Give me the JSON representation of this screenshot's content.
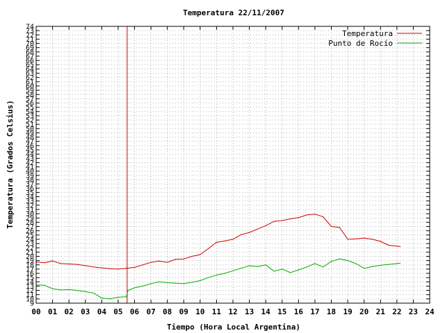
{
  "chart_data": {
    "type": "line",
    "title": "Temperatura 22/11/2007",
    "xlabel": "Tiempo (Hora Local Argentina)",
    "ylabel": "Temperatura (Grados Celsius)",
    "xlim": [
      0,
      24
    ],
    "ylim": [
      9,
      74
    ],
    "x_ticks": [
      "00",
      "01",
      "02",
      "03",
      "04",
      "05",
      "06",
      "07",
      "08",
      "09",
      "10",
      "11",
      "12",
      "13",
      "14",
      "15",
      "16",
      "17",
      "18",
      "19",
      "20",
      "21",
      "22",
      "23",
      "24"
    ],
    "y_ticks": [
      9,
      10,
      11,
      12,
      13,
      14,
      15,
      16,
      17,
      18,
      19,
      20,
      21,
      22,
      23,
      24,
      25,
      26,
      27,
      28,
      29,
      30,
      31,
      32,
      33,
      34,
      35,
      36,
      37,
      38,
      39,
      40,
      41,
      42,
      43,
      44,
      45,
      46,
      47,
      48,
      49,
      50,
      51,
      52,
      53,
      54,
      55,
      56,
      57,
      58,
      59,
      60,
      61,
      62,
      63,
      64,
      65,
      66,
      67,
      68,
      69,
      70,
      71,
      72,
      73,
      74
    ],
    "grid": true,
    "legend_position": "top-right",
    "vertical_marker": {
      "x": 5.55,
      "color": "#cc0000"
    },
    "series": [
      {
        "name": "Temperatura",
        "color": "#cc0000",
        "x": [
          0,
          0.5,
          1.0,
          1.5,
          2.0,
          2.5,
          3.0,
          3.5,
          4.0,
          4.5,
          5.0,
          5.5,
          6.0,
          6.5,
          7.0,
          7.5,
          8.0,
          8.5,
          9.0,
          9.5,
          10.0,
          10.5,
          11.0,
          11.5,
          12.0,
          12.5,
          13.0,
          13.5,
          14.0,
          14.5,
          15.0,
          15.5,
          16.0,
          16.5,
          17.0,
          17.5,
          18.0,
          18.5,
          19.0,
          19.5,
          20.0,
          20.5,
          21.0,
          21.5,
          22.0,
          22.2
        ],
        "y": [
          18.7,
          18.5,
          18.9,
          18.3,
          18.2,
          18.1,
          17.8,
          17.5,
          17.3,
          17.1,
          17.0,
          17.2,
          17.4,
          18.0,
          18.6,
          18.9,
          18.6,
          19.3,
          19.4,
          20.0,
          20.4,
          21.8,
          23.3,
          23.6,
          24.0,
          25.1,
          25.6,
          26.4,
          27.2,
          28.2,
          28.4,
          28.8,
          29.1,
          29.7,
          29.9,
          29.3,
          27.0,
          26.8,
          24.0,
          24.1,
          24.3,
          24.0,
          23.5,
          22.6,
          22.4,
          22.3
        ]
      },
      {
        "name": "Punto de Rocío",
        "color": "#00aa00",
        "x": [
          0,
          0.5,
          1.0,
          1.5,
          2.0,
          2.5,
          3.0,
          3.5,
          4.0,
          4.5,
          5.0,
          5.5,
          5.6,
          6.0,
          6.5,
          7.0,
          7.5,
          8.0,
          8.5,
          9.0,
          9.5,
          10.0,
          10.5,
          11.0,
          11.5,
          12.0,
          12.5,
          13.0,
          13.5,
          14.0,
          14.5,
          15.0,
          15.5,
          16.0,
          16.5,
          17.0,
          17.5,
          18.0,
          18.5,
          19.0,
          19.5,
          20.0,
          20.5,
          21.0,
          21.5,
          22.0,
          22.2
        ],
        "y": [
          13.3,
          13.2,
          12.4,
          12.1,
          12.2,
          12.0,
          11.7,
          11.4,
          10.2,
          10.0,
          10.4,
          10.5,
          12.0,
          12.6,
          13.0,
          13.6,
          14.0,
          13.8,
          13.7,
          13.6,
          13.9,
          14.3,
          15.0,
          15.6,
          16.0,
          16.6,
          17.2,
          17.8,
          17.6,
          18.0,
          16.5,
          17.0,
          16.2,
          16.8,
          17.5,
          18.3,
          17.5,
          18.8,
          19.4,
          19.0,
          18.3,
          17.2,
          17.6,
          17.9,
          18.1,
          18.3,
          18.4
        ]
      }
    ]
  }
}
